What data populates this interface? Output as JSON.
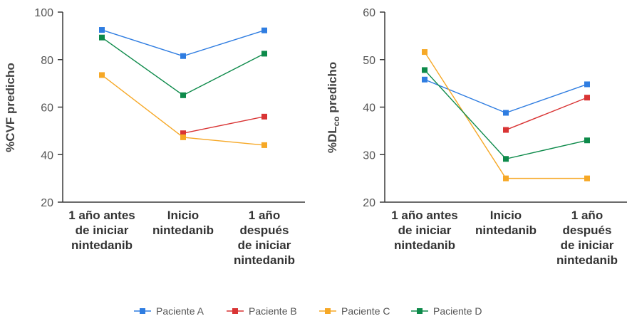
{
  "legend": [
    {
      "name": "Paciente A",
      "color": "#2f7de1"
    },
    {
      "name": "Paciente B",
      "color": "#d93434"
    },
    {
      "name": "Paciente C",
      "color": "#f6a826"
    },
    {
      "name": "Paciente D",
      "color": "#0d8a4a"
    }
  ],
  "chart_data": [
    {
      "type": "line",
      "ylabel": "%CVF predicho",
      "ylim": [
        20,
        100
      ],
      "yticks": [
        20,
        40,
        60,
        80,
        100
      ],
      "categories": [
        [
          "1 año antes",
          "de iniciar",
          "nintedanib"
        ],
        [
          "Inicio",
          "nintedanib"
        ],
        [
          "1 año",
          "después",
          "de iniciar",
          "nintedanib"
        ]
      ],
      "series": [
        {
          "name": "Paciente A",
          "color": "#2f7de1",
          "values": [
            92.5,
            81.5,
            92.3
          ]
        },
        {
          "name": "Paciente B",
          "color": "#d93434",
          "values": [
            null,
            49,
            56
          ]
        },
        {
          "name": "Paciente C",
          "color": "#f6a826",
          "values": [
            73.5,
            47.3,
            44
          ]
        },
        {
          "name": "Paciente D",
          "color": "#0d8a4a",
          "values": [
            89.3,
            65,
            82.5
          ]
        }
      ]
    },
    {
      "type": "line",
      "ylabel_main": "%DL",
      "ylabel_sub": "co",
      "ylabel_rest": " predicho",
      "ylim": [
        20,
        60
      ],
      "yticks": [
        20,
        30,
        40,
        50,
        60
      ],
      "categories": [
        [
          "1 año antes",
          "de iniciar",
          "nintedanib"
        ],
        [
          "Inicio",
          "nintedanib"
        ],
        [
          "1 año",
          "después",
          "de iniciar",
          "nintedanib"
        ]
      ],
      "series": [
        {
          "name": "Paciente A",
          "color": "#2f7de1",
          "values": [
            45.8,
            38.8,
            44.8
          ]
        },
        {
          "name": "Paciente B",
          "color": "#d93434",
          "values": [
            null,
            35.2,
            42
          ]
        },
        {
          "name": "Paciente C",
          "color": "#f6a826",
          "values": [
            51.6,
            25,
            25
          ]
        },
        {
          "name": "Paciente D",
          "color": "#0d8a4a",
          "values": [
            47.8,
            29.1,
            33
          ]
        }
      ]
    }
  ]
}
